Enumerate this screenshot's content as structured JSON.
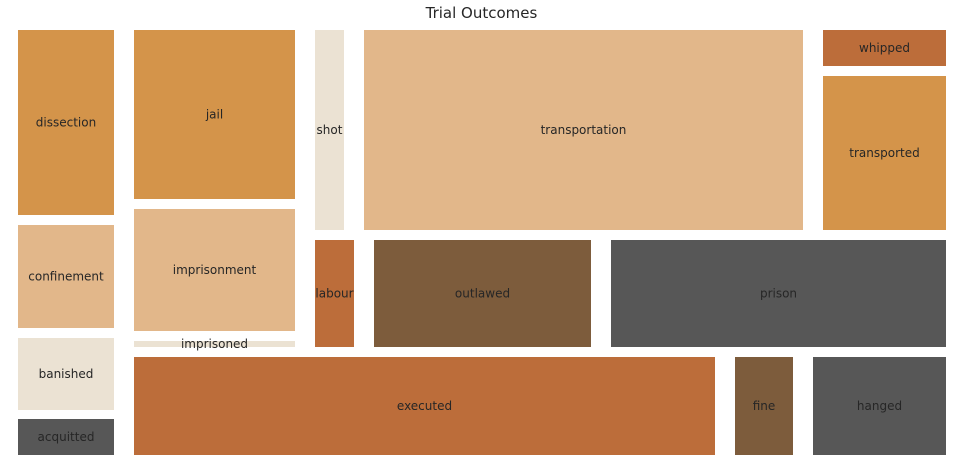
{
  "chart_data": {
    "type": "treemap",
    "title": "Trial Outcomes",
    "palette": {
      "orange": "#d4944a",
      "light-orange": "#e2b78a",
      "cream": "#ebe2d3",
      "rust": "#bc6d3a",
      "brown": "#7d5c3c",
      "gray": "#575757"
    },
    "tiles": [
      {
        "label": "dissection",
        "color": "orange"
      },
      {
        "label": "confinement",
        "color": "light-orange"
      },
      {
        "label": "banished",
        "color": "cream"
      },
      {
        "label": "acquitted",
        "color": "gray"
      },
      {
        "label": "jail",
        "color": "orange"
      },
      {
        "label": "imprisonment",
        "color": "light-orange"
      },
      {
        "label": "imprisoned",
        "color": "cream"
      },
      {
        "label": "shot",
        "color": "cream"
      },
      {
        "label": "transportation",
        "color": "light-orange"
      },
      {
        "label": "whipped",
        "color": "rust"
      },
      {
        "label": "transported",
        "color": "orange"
      },
      {
        "label": "labour",
        "color": "rust"
      },
      {
        "label": "outlawed",
        "color": "brown"
      },
      {
        "label": "prison",
        "color": "gray"
      },
      {
        "label": "executed",
        "color": "rust"
      },
      {
        "label": "fine",
        "color": "brown"
      },
      {
        "label": "hanged",
        "color": "gray"
      }
    ]
  }
}
